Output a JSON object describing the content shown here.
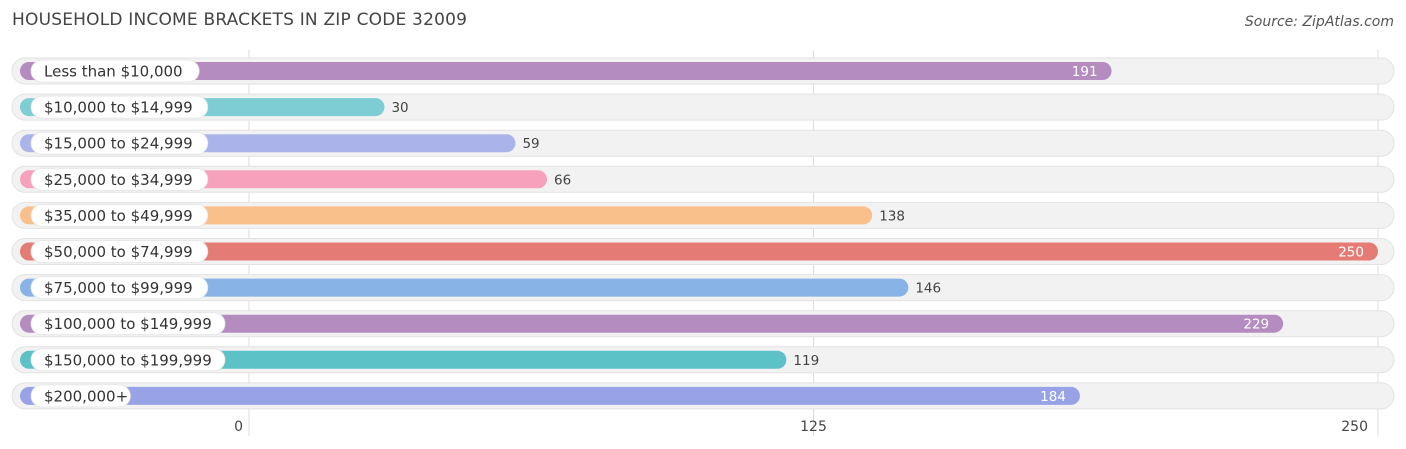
{
  "title": "HOUSEHOLD INCOME BRACKETS IN ZIP CODE 32009",
  "source": "Source: ZipAtlas.com",
  "chart_data": {
    "type": "bar",
    "orientation": "horizontal",
    "title": "HOUSEHOLD INCOME BRACKETS IN ZIP CODE 32009",
    "categories": [
      "Less than $10,000",
      "$10,000 to $14,999",
      "$15,000 to $24,999",
      "$25,000 to $34,999",
      "$35,000 to $49,999",
      "$50,000 to $74,999",
      "$75,000 to $99,999",
      "$100,000 to $149,999",
      "$150,000 to $199,999",
      "$200,000+"
    ],
    "values": [
      191,
      30,
      59,
      66,
      138,
      250,
      146,
      229,
      119,
      184
    ],
    "colors": [
      "#b48cc0",
      "#7ecdd4",
      "#aab4ea",
      "#f7a2bd",
      "#f9c08c",
      "#e57b75",
      "#88b3e6",
      "#b48cc0",
      "#5dc1c8",
      "#97a3e6"
    ],
    "xlim": [
      0,
      250
    ],
    "xticks": [
      0,
      125,
      250
    ],
    "xlabel": "",
    "ylabel": "",
    "grid": true,
    "legend": "none"
  }
}
